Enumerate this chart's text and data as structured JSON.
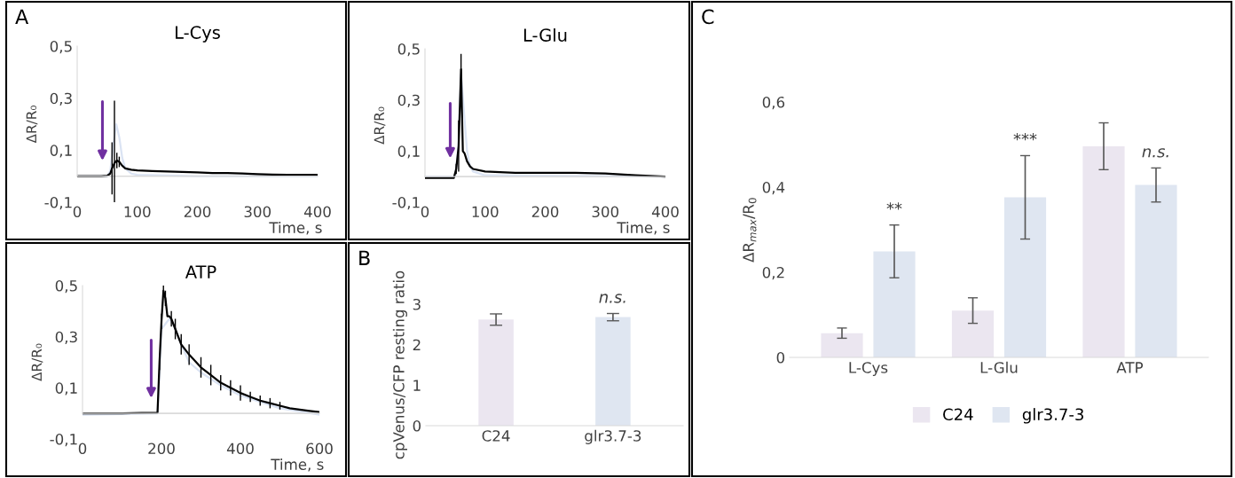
{
  "chart_data": [
    {
      "type": "line",
      "title": "L-Cys",
      "ylabel": "ΔR/R₀",
      "xlabel": "Time, s",
      "annotations": [
        "A"
      ],
      "xlim": [
        0,
        400
      ],
      "xticks": [
        0,
        100,
        200,
        300,
        400
      ],
      "ylim": [
        -0.1,
        0.5
      ],
      "yticks": [
        {
          "value": -0.1,
          "label": "-0,1"
        },
        {
          "value": 0.1,
          "label": "0,1"
        },
        {
          "value": 0.3,
          "label": "0,3"
        },
        {
          "value": 0.5,
          "label": "0,5"
        }
      ],
      "grid": false,
      "ref_lines": [
        {
          "axis": "y",
          "value": 0,
          "color": "#d9d9d9"
        }
      ],
      "series": [
        {
          "color": "#dae3f3",
          "x": [
            0,
            50,
            55,
            60,
            65,
            70,
            75,
            80,
            90,
            100,
            200,
            400
          ],
          "values": [
            0,
            0,
            0.02,
            0.12,
            0.2,
            0.15,
            0.07,
            0.03,
            0.01,
            0.005,
            0,
            0
          ]
        },
        {
          "color": "#000000",
          "x": [
            0,
            10,
            20,
            30,
            40,
            50,
            55,
            58,
            62,
            66,
            70,
            75,
            80,
            90,
            100,
            125,
            150,
            175,
            200,
            225,
            250,
            275,
            300,
            325,
            350,
            375,
            400
          ],
          "values": [
            0,
            0,
            0,
            0,
            0,
            0.002,
            0.01,
            0.03,
            0.05,
            0.06,
            0.055,
            0.04,
            0.03,
            0.025,
            0.022,
            0.02,
            0.018,
            0.016,
            0.015,
            0.012,
            0.012,
            0.01,
            0.008,
            0.006,
            0.005,
            0.005,
            0.005
          ],
          "errors": [
            null,
            null,
            null,
            null,
            null,
            null,
            null,
            0.1,
            0.24,
            0.03,
            0.02,
            null,
            null,
            null,
            null,
            null,
            null,
            null,
            null,
            null,
            null,
            null,
            null,
            null,
            null,
            null,
            null
          ]
        }
      ]
    },
    {
      "type": "line",
      "title": "L-Glu",
      "ylabel": "ΔR/R₀",
      "xlabel": "Time, s",
      "xlim": [
        0,
        400
      ],
      "xticks": [
        0,
        100,
        200,
        300,
        400
      ],
      "ylim": [
        -0.1,
        0.5
      ],
      "yticks": [
        {
          "value": -0.1,
          "label": "-0,1"
        },
        {
          "value": 0.1,
          "label": "0,1"
        },
        {
          "value": 0.3,
          "label": "0,3"
        },
        {
          "value": 0.5,
          "label": "0,5"
        }
      ],
      "grid": false,
      "ref_lines": [
        {
          "axis": "y",
          "value": 0,
          "color": "#d9d9d9"
        }
      ],
      "series": [
        {
          "color": "#dae3f3",
          "x": [
            0,
            50,
            55,
            60,
            65,
            70,
            75,
            80,
            100,
            400
          ],
          "values": [
            0,
            0,
            0.1,
            0.4,
            0.25,
            0.1,
            0.04,
            0.02,
            0.005,
            0
          ]
        },
        {
          "color": "#000000",
          "x": [
            0,
            10,
            20,
            30,
            40,
            48,
            52,
            56,
            60,
            63,
            66,
            70,
            75,
            80,
            100,
            150,
            200,
            250,
            300,
            350,
            400
          ],
          "values": [
            -0.005,
            -0.005,
            -0.005,
            -0.005,
            -0.005,
            -0.005,
            0.03,
            0.12,
            0.42,
            0.1,
            0.09,
            0.06,
            0.04,
            0.03,
            0.02,
            0.015,
            0.015,
            0.015,
            0.012,
            0.005,
            0
          ],
          "errors": [
            null,
            null,
            null,
            null,
            null,
            null,
            0.02,
            0.1,
            0.06,
            null,
            null,
            null,
            null,
            null,
            null,
            null,
            null,
            null,
            null,
            null,
            null
          ]
        }
      ]
    },
    {
      "type": "line",
      "title": "ATP",
      "ylabel": "ΔR/R₀",
      "xlabel": "Time, s",
      "xlim": [
        0,
        600
      ],
      "xticks": [
        0,
        200,
        400,
        600
      ],
      "ylim": [
        -0.1,
        0.5
      ],
      "yticks": [
        {
          "value": -0.1,
          "label": "-0,1"
        },
        {
          "value": 0.1,
          "label": "0,1"
        },
        {
          "value": 0.3,
          "label": "0,3"
        },
        {
          "value": 0.5,
          "label": "0,5"
        }
      ],
      "grid": false,
      "ref_lines": [
        {
          "axis": "y",
          "value": 0,
          "color": "#d9d9d9"
        }
      ],
      "series": [
        {
          "color": "#dae3f3",
          "x": [
            0,
            190,
            195,
            200,
            210,
            220,
            230,
            250,
            270,
            300,
            350,
            400,
            450,
            500,
            550,
            600
          ],
          "values": [
            -0.005,
            0,
            0.15,
            0.33,
            0.35,
            0.37,
            0.35,
            0.27,
            0.2,
            0.16,
            0.11,
            0.07,
            0.045,
            0.02,
            0.008,
            -0.005
          ]
        },
        {
          "color": "#000000",
          "x": [
            0,
            50,
            100,
            150,
            190,
            195,
            200,
            205,
            210,
            215,
            220,
            225,
            235,
            250,
            270,
            300,
            325,
            350,
            375,
            400,
            425,
            450,
            475,
            500,
            525,
            550,
            575,
            600
          ],
          "values": [
            0,
            0,
            0,
            0.002,
            0.003,
            0.2,
            0.36,
            0.48,
            0.45,
            0.38,
            0.38,
            0.37,
            0.33,
            0.27,
            0.23,
            0.18,
            0.15,
            0.12,
            0.1,
            0.08,
            0.065,
            0.05,
            0.04,
            0.03,
            0.02,
            0.015,
            0.01,
            0.005
          ],
          "errors": [
            null,
            null,
            null,
            null,
            null,
            0.03,
            0.03,
            0.02,
            0.03,
            null,
            null,
            0.03,
            0.04,
            0.04,
            0.04,
            0.04,
            0.04,
            0.03,
            0.03,
            0.03,
            0.02,
            0.02,
            0.02,
            0.015,
            null,
            null,
            null,
            null
          ]
        }
      ]
    },
    {
      "type": "bar",
      "ylabel": "cpVenus/CFP resting ratio",
      "annotations": [
        "B",
        {
          "text": "n.s.",
          "x": "glr3.7-3",
          "y": 2.68
        }
      ],
      "categories": [
        "C24",
        "glr3.7-3"
      ],
      "values": [
        2.62,
        2.68
      ],
      "errors": [
        0.14,
        0.09
      ],
      "colors": [
        "#ebe6f0",
        "#dfe6f1"
      ],
      "ylim": [
        0,
        3
      ],
      "yticks": [
        0,
        1,
        2,
        3
      ],
      "grid": false
    },
    {
      "type": "bar",
      "ylabel": "ΔR$_{max}$/R$_{0}$",
      "annotations": [
        "C",
        "**",
        "***",
        "n.s."
      ],
      "categories": [
        "L-Cys",
        "L-Glu",
        "ATP"
      ],
      "ylim": [
        0,
        0.6
      ],
      "yticks": [
        0,
        {
          "value": 0.2,
          "label": "0,2"
        },
        {
          "value": 0.4,
          "label": "0,4"
        },
        {
          "value": 0.6,
          "label": "0,6"
        }
      ],
      "grid": false,
      "legend": "bottom",
      "series": [
        {
          "name": "C24",
          "color": "#ebe6f0",
          "values": [
            0.057,
            0.11,
            0.496
          ],
          "errors": [
            0.012,
            0.03,
            0.055
          ]
        },
        {
          "name": "glr3.7-3",
          "color": "#dfe6f1",
          "values": [
            0.249,
            0.376,
            0.405
          ],
          "errors": [
            0.062,
            0.098,
            0.04
          ]
        }
      ]
    }
  ]
}
